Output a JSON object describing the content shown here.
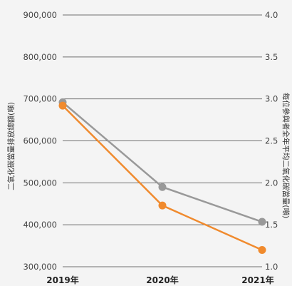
{
  "chart_data": {
    "type": "line",
    "categories": [
      "2019年",
      "2020年",
      "2021年"
    ],
    "ylabel_left": "二氧化碳當量排放總額(噸)",
    "ylabel_right": "每位參與者全年平均二氧化碳當量(噸)",
    "y_left": {
      "min": 300000,
      "max": 900000,
      "step": 100000,
      "ticks": [
        "300,000",
        "400,000",
        "500,000",
        "600,000",
        "700,000",
        "800,000",
        "900,000"
      ]
    },
    "y_right": {
      "min": 1.0,
      "max": 4.0,
      "step": 0.5,
      "ticks": [
        "1.0",
        "1.5",
        "2.0",
        "2.5",
        "3.0",
        "3.5",
        "4.0"
      ]
    },
    "grid": true,
    "series": [
      {
        "axis": "left",
        "color": "#999999",
        "values": [
          692000,
          490000,
          407000
        ]
      },
      {
        "axis": "right",
        "color": "#f08a2d",
        "values": [
          2.92,
          1.73,
          1.2
        ]
      }
    ]
  }
}
